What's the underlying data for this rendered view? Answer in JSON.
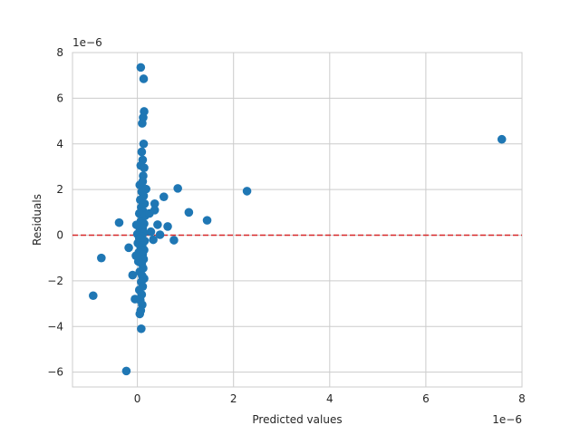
{
  "chart_data": {
    "type": "scatter",
    "xlabel": "Predicted values",
    "ylabel": "Residuals",
    "x_scale_label": "1e−6",
    "y_scale_label": "1e−6",
    "xlim": [
      -1.35,
      8.0
    ],
    "ylim": [
      -6.65,
      8.0
    ],
    "x_ticks": [
      0,
      2,
      4,
      6,
      8
    ],
    "y_ticks": [
      -6,
      -4,
      -2,
      0,
      2,
      4,
      6,
      8
    ],
    "x_tick_labels": [
      "0",
      "2",
      "4",
      "6",
      "8"
    ],
    "y_tick_labels": [
      "−6",
      "−4",
      "−2",
      "0",
      "2",
      "4",
      "6",
      "8"
    ],
    "grid": true,
    "units_note": "values in units of 1e-6",
    "reference_line": {
      "y": 0,
      "color": "#d62728",
      "style": "dashed"
    },
    "point_color": "#1f77b4",
    "points": [
      [
        7.58,
        4.2
      ],
      [
        2.28,
        1.93
      ],
      [
        1.45,
        0.65
      ],
      [
        1.07,
        1.0
      ],
      [
        0.84,
        2.05
      ],
      [
        0.76,
        -0.22
      ],
      [
        0.63,
        0.38
      ],
      [
        0.55,
        1.68
      ],
      [
        0.47,
        0.02
      ],
      [
        0.42,
        0.46
      ],
      [
        0.36,
        1.38
      ],
      [
        0.36,
        1.1
      ],
      [
        0.33,
        -0.2
      ],
      [
        0.07,
        7.35
      ],
      [
        0.13,
        6.85
      ],
      [
        0.14,
        5.42
      ],
      [
        0.12,
        5.15
      ],
      [
        0.1,
        4.9
      ],
      [
        0.13,
        4.0
      ],
      [
        0.09,
        3.65
      ],
      [
        0.11,
        3.3
      ],
      [
        0.07,
        3.05
      ],
      [
        0.14,
        2.95
      ],
      [
        0.12,
        2.6
      ],
      [
        0.05,
        2.2
      ],
      [
        0.11,
        2.35
      ],
      [
        0.18,
        2.02
      ],
      [
        0.09,
        1.9
      ],
      [
        0.13,
        1.72
      ],
      [
        0.06,
        1.55
      ],
      [
        0.15,
        1.38
      ],
      [
        0.08,
        1.22
      ],
      [
        0.12,
        1.05
      ],
      [
        0.04,
        0.95
      ],
      [
        0.16,
        0.85
      ],
      [
        0.1,
        0.72
      ],
      [
        0.07,
        0.6
      ],
      [
        0.14,
        0.5
      ],
      [
        0.02,
        0.42
      ],
      [
        0.11,
        0.3
      ],
      [
        0.05,
        0.2
      ],
      [
        0.13,
        0.1
      ],
      [
        0.0,
        0.05
      ],
      [
        0.09,
        -0.05
      ],
      [
        0.04,
        -0.15
      ],
      [
        0.15,
        -0.25
      ],
      [
        0.01,
        -0.35
      ],
      [
        0.1,
        -0.45
      ],
      [
        0.07,
        -0.55
      ],
      [
        0.14,
        -0.65
      ],
      [
        0.03,
        -0.75
      ],
      [
        0.11,
        -0.85
      ],
      [
        0.06,
        -0.95
      ],
      [
        0.13,
        -1.05
      ],
      [
        0.02,
        -1.15
      ],
      [
        0.09,
        -1.25
      ],
      [
        0.12,
        -1.45
      ],
      [
        0.05,
        -1.6
      ],
      [
        0.1,
        -1.78
      ],
      [
        0.14,
        -1.9
      ],
      [
        0.08,
        -2.05
      ],
      [
        0.11,
        -2.25
      ],
      [
        0.04,
        -2.4
      ],
      [
        0.09,
        -2.6
      ],
      [
        0.06,
        -2.85
      ],
      [
        0.1,
        -3.05
      ],
      [
        0.07,
        -3.3
      ],
      [
        0.05,
        -3.45
      ],
      [
        0.08,
        -4.1
      ],
      [
        -0.05,
        -2.8
      ],
      [
        -0.1,
        -1.75
      ],
      [
        -0.18,
        -0.55
      ],
      [
        -0.38,
        0.55
      ],
      [
        -0.02,
        0.45
      ],
      [
        -0.03,
        -0.9
      ],
      [
        -0.75,
        -1.0
      ],
      [
        -0.92,
        -2.65
      ],
      [
        -0.23,
        -5.95
      ],
      [
        0.25,
        0.95
      ],
      [
        0.28,
        0.15
      ]
    ]
  }
}
